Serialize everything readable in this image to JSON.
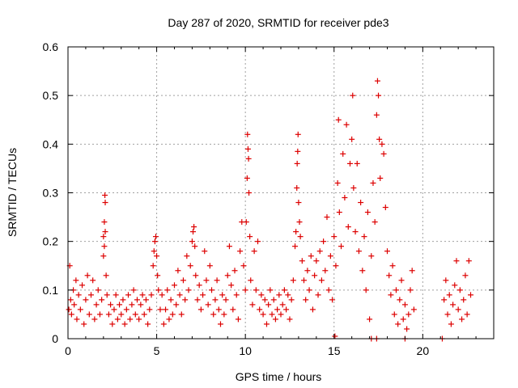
{
  "chart_data": {
    "type": "scatter",
    "title": "Day 287 of 2020, SRMTID for receiver pde3",
    "xlabel": "GPS time / hours",
    "ylabel": "SRMTID / TECUs",
    "xlim": [
      0,
      24
    ],
    "ylim": [
      0,
      0.6
    ],
    "x_ticks": [
      0,
      5,
      10,
      15,
      20
    ],
    "y_ticks": [
      0,
      0.1,
      0.2,
      0.3,
      0.4,
      0.5,
      0.6
    ],
    "x_tick_labels": [
      "0",
      "5",
      "10",
      "15",
      "20"
    ],
    "y_tick_labels": [
      "0",
      "0.1",
      "0.2",
      "0.3",
      "0.4",
      "0.5",
      "0.6"
    ],
    "grid": true,
    "marker": "+",
    "series": [
      {
        "name": "SRMTID",
        "color": "#dd0000",
        "points": [
          [
            0.05,
            0.06
          ],
          [
            0.1,
            0.15
          ],
          [
            0.15,
            0.08
          ],
          [
            0.2,
            0.05
          ],
          [
            0.3,
            0.1
          ],
          [
            0.35,
            0.07
          ],
          [
            0.45,
            0.12
          ],
          [
            0.5,
            0.04
          ],
          [
            0.6,
            0.09
          ],
          [
            0.7,
            0.06
          ],
          [
            0.8,
            0.11
          ],
          [
            0.9,
            0.03
          ],
          [
            1.0,
            0.08
          ],
          [
            1.1,
            0.13
          ],
          [
            1.2,
            0.05
          ],
          [
            1.3,
            0.09
          ],
          [
            1.4,
            0.12
          ],
          [
            1.5,
            0.04
          ],
          [
            1.6,
            0.07
          ],
          [
            1.7,
            0.1
          ],
          [
            1.8,
            0.05
          ],
          [
            1.9,
            0.08
          ],
          [
            2.0,
            0.17
          ],
          [
            2.0,
            0.21
          ],
          [
            2.05,
            0.24
          ],
          [
            2.05,
            0.19
          ],
          [
            2.08,
            0.295
          ],
          [
            2.1,
            0.28
          ],
          [
            2.1,
            0.22
          ],
          [
            2.15,
            0.13
          ],
          [
            2.2,
            0.09
          ],
          [
            2.3,
            0.05
          ],
          [
            2.4,
            0.07
          ],
          [
            2.5,
            0.03
          ],
          [
            2.6,
            0.06
          ],
          [
            2.7,
            0.09
          ],
          [
            2.8,
            0.04
          ],
          [
            2.9,
            0.07
          ],
          [
            3.0,
            0.05
          ],
          [
            3.1,
            0.08
          ],
          [
            3.2,
            0.03
          ],
          [
            3.3,
            0.06
          ],
          [
            3.4,
            0.09
          ],
          [
            3.5,
            0.04
          ],
          [
            3.6,
            0.07
          ],
          [
            3.7,
            0.1
          ],
          [
            3.8,
            0.05
          ],
          [
            3.9,
            0.08
          ],
          [
            4.0,
            0.04
          ],
          [
            4.1,
            0.07
          ],
          [
            4.2,
            0.09
          ],
          [
            4.3,
            0.05
          ],
          [
            4.4,
            0.08
          ],
          [
            4.5,
            0.03
          ],
          [
            4.6,
            0.06
          ],
          [
            4.7,
            0.09
          ],
          [
            4.8,
            0.15
          ],
          [
            4.85,
            0.18
          ],
          [
            4.9,
            0.2
          ],
          [
            4.95,
            0.21
          ],
          [
            5.0,
            0.17
          ],
          [
            5.05,
            0.13
          ],
          [
            5.1,
            0.1
          ],
          [
            5.2,
            0.06
          ],
          [
            5.3,
            0.09
          ],
          [
            5.4,
            0.03
          ],
          [
            5.5,
            0.06
          ],
          [
            5.6,
            0.1
          ],
          [
            5.7,
            0.04
          ],
          [
            5.8,
            0.08
          ],
          [
            5.9,
            0.05
          ],
          [
            6.0,
            0.11
          ],
          [
            6.1,
            0.07
          ],
          [
            6.2,
            0.14
          ],
          [
            6.3,
            0.09
          ],
          [
            6.4,
            0.05
          ],
          [
            6.5,
            0.12
          ],
          [
            6.6,
            0.08
          ],
          [
            6.7,
            0.17
          ],
          [
            6.8,
            0.1
          ],
          [
            6.9,
            0.15
          ],
          [
            7.0,
            0.2
          ],
          [
            7.05,
            0.22
          ],
          [
            7.1,
            0.23
          ],
          [
            7.15,
            0.19
          ],
          [
            7.2,
            0.13
          ],
          [
            7.3,
            0.08
          ],
          [
            7.4,
            0.11
          ],
          [
            7.5,
            0.06
          ],
          [
            7.6,
            0.09
          ],
          [
            7.7,
            0.18
          ],
          [
            7.8,
            0.12
          ],
          [
            7.9,
            0.07
          ],
          [
            8.0,
            0.15
          ],
          [
            8.1,
            0.1
          ],
          [
            8.2,
            0.05
          ],
          [
            8.3,
            0.08
          ],
          [
            8.4,
            0.12
          ],
          [
            8.5,
            0.06
          ],
          [
            8.6,
            0.03
          ],
          [
            8.7,
            0.09
          ],
          [
            8.8,
            0.05
          ],
          [
            8.9,
            0.08
          ],
          [
            9.0,
            0.13
          ],
          [
            9.1,
            0.19
          ],
          [
            9.2,
            0.11
          ],
          [
            9.3,
            0.06
          ],
          [
            9.4,
            0.14
          ],
          [
            9.5,
            0.09
          ],
          [
            9.6,
            0.04
          ],
          [
            9.7,
            0.18
          ],
          [
            9.8,
            0.24
          ],
          [
            9.9,
            0.15
          ],
          [
            10.0,
            0.1
          ],
          [
            10.05,
            0.24
          ],
          [
            10.1,
            0.33
          ],
          [
            10.12,
            0.42
          ],
          [
            10.15,
            0.39
          ],
          [
            10.18,
            0.37
          ],
          [
            10.2,
            0.3
          ],
          [
            10.25,
            0.21
          ],
          [
            10.3,
            0.12
          ],
          [
            10.4,
            0.07
          ],
          [
            10.5,
            0.18
          ],
          [
            10.6,
            0.1
          ],
          [
            10.7,
            0.2
          ],
          [
            10.8,
            0.06
          ],
          [
            10.9,
            0.09
          ],
          [
            11.0,
            0.05
          ],
          [
            11.1,
            0.08
          ],
          [
            11.2,
            0.03
          ],
          [
            11.3,
            0.07
          ],
          [
            11.4,
            0.1
          ],
          [
            11.5,
            0.05
          ],
          [
            11.6,
            0.08
          ],
          [
            11.7,
            0.04
          ],
          [
            11.8,
            0.06
          ],
          [
            11.9,
            0.09
          ],
          [
            12.0,
            0.05
          ],
          [
            12.1,
            0.07
          ],
          [
            12.2,
            0.1
          ],
          [
            12.3,
            0.06
          ],
          [
            12.4,
            0.09
          ],
          [
            12.5,
            0.04
          ],
          [
            12.6,
            0.08
          ],
          [
            12.7,
            0.12
          ],
          [
            12.8,
            0.19
          ],
          [
            12.85,
            0.22
          ],
          [
            12.9,
            0.31
          ],
          [
            12.92,
            0.36
          ],
          [
            12.95,
            0.385
          ],
          [
            12.97,
            0.42
          ],
          [
            13.0,
            0.28
          ],
          [
            13.05,
            0.24
          ],
          [
            13.1,
            0.21
          ],
          [
            13.2,
            0.16
          ],
          [
            13.3,
            0.12
          ],
          [
            13.4,
            0.08
          ],
          [
            13.5,
            0.14
          ],
          [
            13.6,
            0.1
          ],
          [
            13.7,
            0.17
          ],
          [
            13.8,
            0.06
          ],
          [
            13.9,
            0.13
          ],
          [
            14.0,
            0.16
          ],
          [
            14.1,
            0.09
          ],
          [
            14.2,
            0.18
          ],
          [
            14.3,
            0.12
          ],
          [
            14.4,
            0.2
          ],
          [
            14.5,
            0.14
          ],
          [
            14.6,
            0.25
          ],
          [
            14.7,
            0.1
          ],
          [
            14.8,
            0.17
          ],
          [
            14.9,
            0.08
          ],
          [
            15.0,
            0.21
          ],
          [
            15.05,
            0.005
          ],
          [
            15.1,
            0.15
          ],
          [
            15.2,
            0.32
          ],
          [
            15.25,
            0.45
          ],
          [
            15.3,
            0.26
          ],
          [
            15.4,
            0.19
          ],
          [
            15.5,
            0.38
          ],
          [
            15.6,
            0.29
          ],
          [
            15.7,
            0.44
          ],
          [
            15.8,
            0.23
          ],
          [
            15.9,
            0.36
          ],
          [
            16.0,
            0.41
          ],
          [
            16.05,
            0.5
          ],
          [
            16.1,
            0.31
          ],
          [
            16.2,
            0.22
          ],
          [
            16.3,
            0.36
          ],
          [
            16.4,
            0.18
          ],
          [
            16.5,
            0.28
          ],
          [
            16.6,
            0.14
          ],
          [
            16.7,
            0.21
          ],
          [
            16.8,
            0.1
          ],
          [
            16.9,
            0.26
          ],
          [
            17.0,
            0.04
          ],
          [
            17.1,
            0.17
          ],
          [
            17.2,
            0.32
          ],
          [
            17.3,
            0.24
          ],
          [
            17.4,
            0.46
          ],
          [
            17.45,
            0.53
          ],
          [
            17.5,
            0.5
          ],
          [
            17.55,
            0.41
          ],
          [
            17.6,
            0.33
          ],
          [
            17.7,
            0.4
          ],
          [
            17.8,
            0.38
          ],
          [
            17.9,
            0.27
          ],
          [
            18.0,
            0.18
          ],
          [
            18.1,
            0.13
          ],
          [
            18.2,
            0.09
          ],
          [
            18.3,
            0.15
          ],
          [
            18.4,
            0.05
          ],
          [
            18.5,
            0.1
          ],
          [
            18.6,
            0.03
          ],
          [
            18.7,
            0.08
          ],
          [
            18.8,
            0.12
          ],
          [
            18.9,
            0.04
          ],
          [
            19.0,
            0.07
          ],
          [
            19.1,
            0.02
          ],
          [
            19.2,
            0.05
          ],
          [
            19.3,
            0.1
          ],
          [
            19.4,
            0.14
          ],
          [
            19.5,
            0.06
          ],
          [
            17.1,
            0.0
          ],
          [
            17.4,
            0.0
          ],
          [
            19.0,
            0.0
          ],
          [
            21.1,
            0.0
          ],
          [
            21.2,
            0.08
          ],
          [
            21.3,
            0.12
          ],
          [
            21.4,
            0.05
          ],
          [
            21.5,
            0.09
          ],
          [
            21.6,
            0.03
          ],
          [
            21.7,
            0.07
          ],
          [
            21.8,
            0.11
          ],
          [
            21.9,
            0.16
          ],
          [
            22.0,
            0.06
          ],
          [
            22.1,
            0.1
          ],
          [
            22.2,
            0.04
          ],
          [
            22.3,
            0.08
          ],
          [
            22.4,
            0.13
          ],
          [
            22.5,
            0.05
          ],
          [
            22.6,
            0.16
          ],
          [
            22.7,
            0.09
          ]
        ]
      }
    ]
  }
}
